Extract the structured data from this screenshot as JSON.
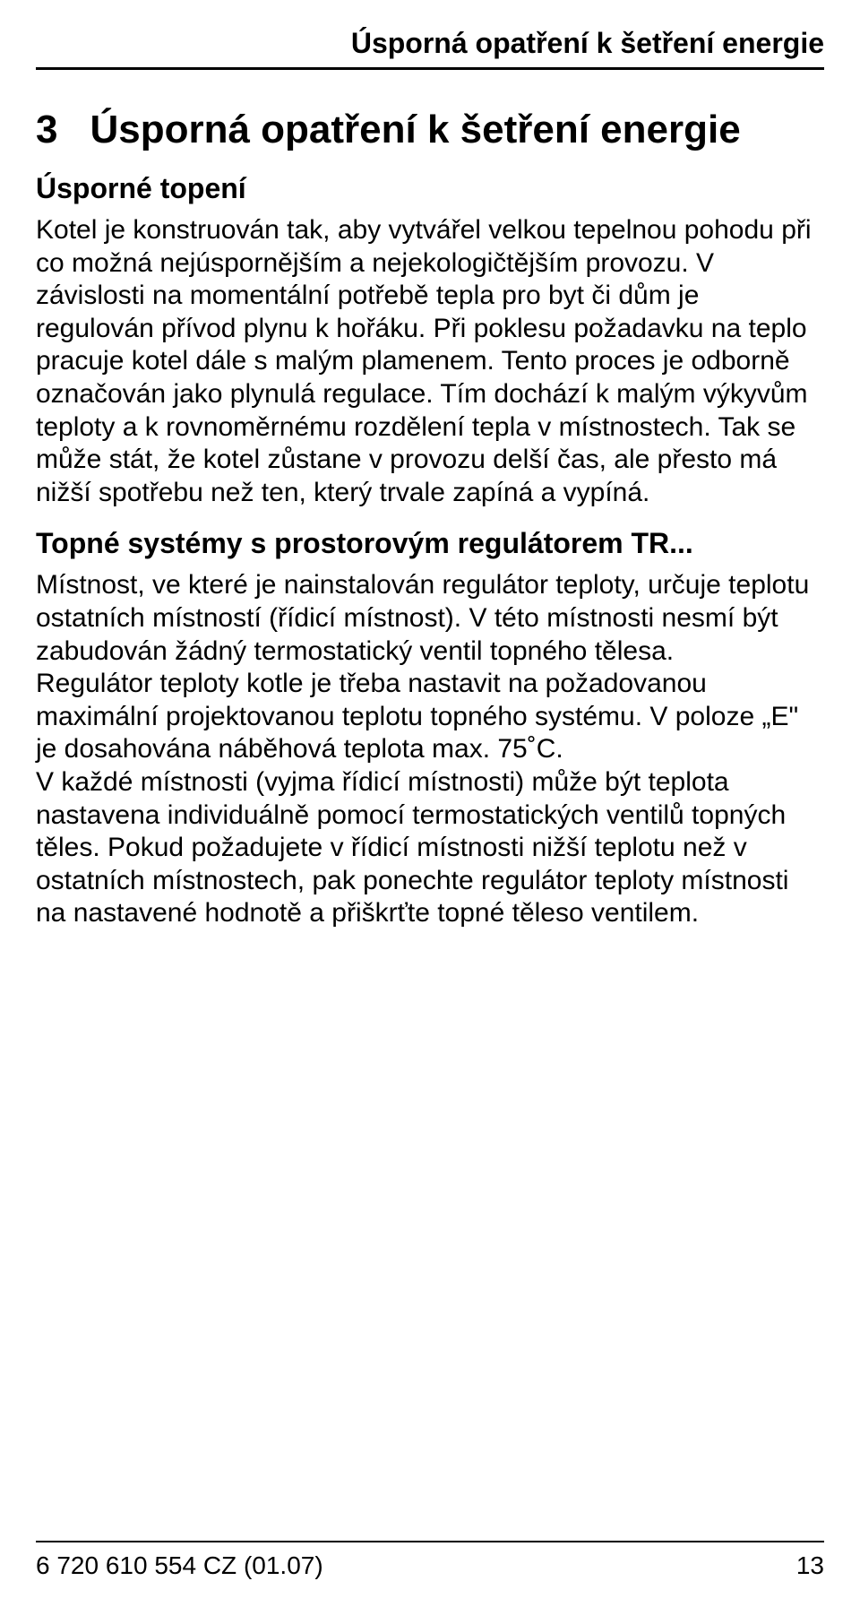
{
  "running_head": "Úsporná opatření k šetření energie",
  "chapter": {
    "number": "3",
    "title": "Úsporná opatření k šetření energie"
  },
  "section1": {
    "heading": "Úsporné topení",
    "para": "Kotel je konstruován tak, aby vytvářel velkou tepelnou pohodu při co možná nejúspornějším a nejekologičtějším provozu. V závislosti na momentální potřebě tepla pro byt či dům je regulován přívod plynu k hořáku. Při poklesu požadavku na teplo pracuje kotel dále s malým plamenem. Tento proces je odborně označován jako plynulá regulace. Tím dochází k malým výkyvům teploty a k rovnoměrnému rozdělení tepla v místnostech. Tak se může stát, že kotel zůstane v provozu delší čas, ale přesto má nižší spotřebu než ten, který trvale zapíná a vypíná."
  },
  "section2": {
    "heading": "Topné systémy s prostorovým regulátorem TR...",
    "para1": "Místnost, ve které je nainstalován regulátor teploty, určuje teplotu ostatních místností (řídicí místnost). V této místnosti nesmí být zabudován žádný termostatický ventil topného tělesa.",
    "para2": "Regulátor teploty kotle je třeba nastavit na požadovanou maximální projektovanou teplotu topného systému. V poloze „E\" je dosahována náběhová teplota max. 75˚C.",
    "para3": "V každé místnosti (vyjma řídicí místnosti) může být teplota nastavena individuálně pomocí termostatických ventilů topných těles. Pokud požadujete v řídicí místnosti nižší teplotu než v ostatních místnostech, pak ponechte regulátor teploty místnosti na nastavené hodnotě a přiškrťte topné těleso ventilem."
  },
  "footer": {
    "docnum": "6 720 610 554  CZ (01.07)",
    "page": "13"
  },
  "colors": {
    "text": "#000000",
    "background": "#ffffff",
    "rule": "#000000"
  },
  "typography": {
    "body_fontsize_pt": 22,
    "heading_fontsize_pt": 24,
    "chapter_fontsize_pt": 33,
    "font_family": "Arial"
  }
}
